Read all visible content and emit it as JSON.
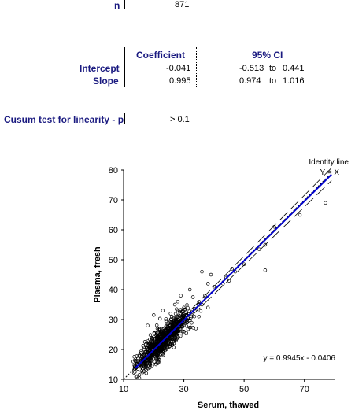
{
  "summary": {
    "n_label": "n",
    "n_value": "871"
  },
  "table": {
    "headers": [
      "Coefficient",
      "95% CI"
    ],
    "rows": [
      {
        "label": "Intercept",
        "coef": "-0.041",
        "ci_low": "-0.513",
        "ci_to": "to",
        "ci_high": "0.441"
      },
      {
        "label": "Slope",
        "coef": "0.995",
        "ci_low": "0.974",
        "ci_to": "to",
        "ci_high": "1.016"
      }
    ]
  },
  "cusum": {
    "label": "Cusum test for linearity - p",
    "value": "> 0.1"
  },
  "chart_data": {
    "type": "scatter",
    "xlabel": "Serum, thawed",
    "ylabel": "Plasma, fresh",
    "xlim": [
      10,
      80
    ],
    "ylim": [
      10,
      80
    ],
    "xticks": [
      "10",
      "30",
      "50",
      "70"
    ],
    "yticks": [
      "10",
      "20",
      "30",
      "40",
      "50",
      "60",
      "70",
      "80"
    ],
    "identity_label": [
      "Identity line",
      "Y = X"
    ],
    "equation": "y = 0.9945x - 0.0406",
    "regression": {
      "slope": 0.9945,
      "intercept": -0.0406
    },
    "ci_band": {
      "slope_low": 0.974,
      "slope_high": 1.016,
      "intercept_low": -0.513,
      "intercept_high": 0.441
    },
    "n_points": 871,
    "cluster": {
      "x_mean": 23,
      "x_sd": 4.5,
      "y_sd": 2.2
    },
    "outliers": [
      [
        77,
        69
      ],
      [
        68.5,
        65
      ],
      [
        60,
        61
      ],
      [
        57,
        55
      ],
      [
        55,
        53.5
      ],
      [
        57,
        46.5
      ],
      [
        50,
        48.5
      ],
      [
        47,
        46
      ],
      [
        46,
        47
      ],
      [
        45,
        43
      ],
      [
        39,
        45
      ],
      [
        38,
        42
      ],
      [
        36,
        46
      ],
      [
        40,
        41
      ],
      [
        37,
        38
      ],
      [
        35,
        36
      ],
      [
        38,
        34
      ],
      [
        33,
        37.5
      ],
      [
        30,
        34
      ],
      [
        31,
        29
      ],
      [
        34,
        27
      ],
      [
        35,
        31
      ],
      [
        20,
        31.5
      ],
      [
        23,
        33
      ],
      [
        27,
        35
      ],
      [
        26,
        31
      ],
      [
        18,
        28
      ],
      [
        25,
        27
      ],
      [
        28,
        36
      ],
      [
        32,
        40
      ],
      [
        29,
        38
      ],
      [
        43,
        42
      ],
      [
        44,
        44
      ],
      [
        28,
        30
      ],
      [
        36,
        35
      ]
    ],
    "colors": {
      "regression": "#0000cc",
      "identity": "#000000",
      "points": "#000000"
    }
  }
}
